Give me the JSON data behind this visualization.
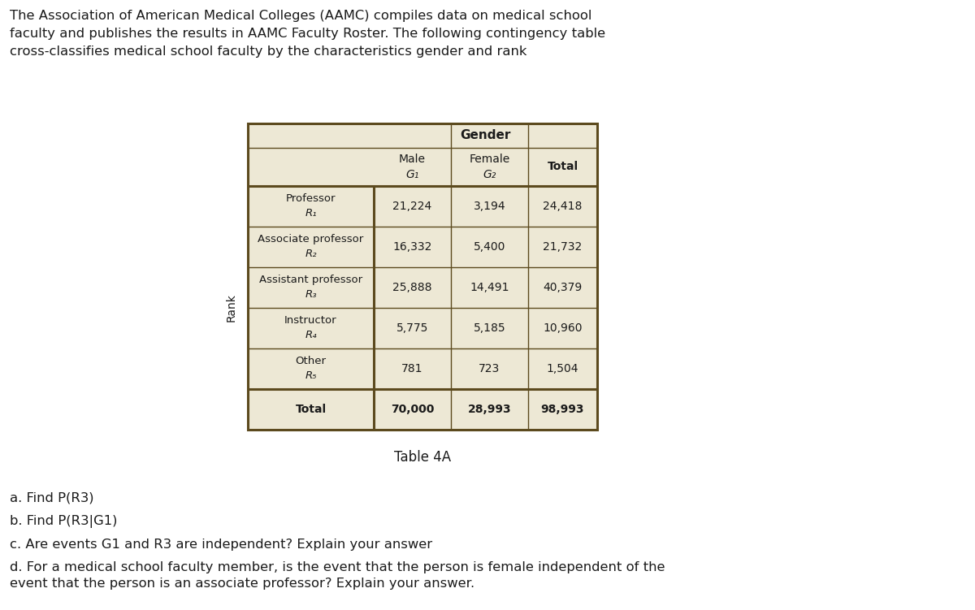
{
  "intro_text": "The Association of American Medical Colleges (AAMC) compiles data on medical school\nfaculty and publishes the results in AAMC Faculty Roster. The following contingency table\ncross-classifies medical school faculty by the characteristics gender and rank",
  "table_caption": "Table 4A",
  "table_bg_color": "#ede8d5",
  "table_border_color": "#5c4a1e",
  "header_gender": "Gender",
  "header_male": "Male",
  "header_male_sub": "G₁",
  "header_female": "Female",
  "header_female_sub": "G₂",
  "header_total": "Total",
  "rank_label": "Rank",
  "rows": [
    {
      "label": "Professor",
      "sublabel": "R₁",
      "male": "21,224",
      "female": "3,194",
      "total": "24,418"
    },
    {
      "label": "Associate professor",
      "sublabel": "R₂",
      "male": "16,332",
      "female": "5,400",
      "total": "21,732"
    },
    {
      "label": "Assistant professor",
      "sublabel": "R₃",
      "male": "25,888",
      "female": "14,491",
      "total": "40,379"
    },
    {
      "label": "Instructor",
      "sublabel": "R₄",
      "male": "5,775",
      "female": "5,185",
      "total": "10,960"
    },
    {
      "label": "Other",
      "sublabel": "R₅",
      "male": "781",
      "female": "723",
      "total": "1,504"
    },
    {
      "label": "Total",
      "sublabel": null,
      "male": "70,000",
      "female": "28,993",
      "total": "98,993"
    }
  ],
  "questions": [
    "a. Find P(R3)",
    "b. Find P(R3|G1)",
    "c. Are events G1 and R3 are independent? Explain your answer",
    "d. For a medical school faculty member, is the event that the person is female independent of the\nevent that the person is an associate professor? Explain your answer."
  ],
  "text_color": "#1a1a1a",
  "bold_color": "#1a1a1a",
  "fig_width": 12.0,
  "fig_height": 7.51,
  "dpi": 100
}
